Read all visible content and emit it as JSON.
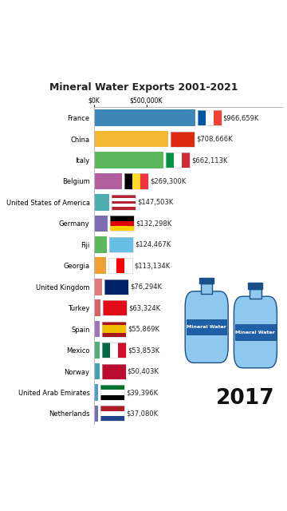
{
  "chart_data": {
    "type": "bar",
    "orientation": "horizontal",
    "title": "Mineral Water Exports 2001-2021",
    "annotations": [
      "2017",
      "Mineral Water",
      "Mineral Water"
    ],
    "categories": [
      "France",
      "China",
      "Italy",
      "Belgium",
      "United States of America",
      "Germany",
      "Fiji",
      "Georgia",
      "United Kingdom",
      "Turkey",
      "Spain",
      "Mexico",
      "Norway",
      "United Arab Emirates",
      "Netherlands"
    ],
    "values": [
      966659,
      708666,
      662113,
      269300,
      147503,
      132298,
      124467,
      113134,
      76294,
      63324,
      55869,
      53853,
      50403,
      39396,
      37080
    ],
    "value_labels": [
      "$966,659K",
      "$708,666K",
      "$662,113K",
      "$269,300K",
      "$147,503K",
      "$132,298K",
      "$124,467K",
      "$113,134K",
      "$76,294K",
      "$63,324K",
      "$55,869K",
      "$53,853K",
      "$50,403K",
      "$39,396K",
      "$37,080K"
    ],
    "colors": [
      "#3d86b8",
      "#f4b731",
      "#5cb85c",
      "#b15e9f",
      "#4eafb2",
      "#7b6cb4",
      "#5cb85c",
      "#f0a033",
      "#e07b7b",
      "#d96262",
      "#a472c2",
      "#4bb07a",
      "#3fa6b1",
      "#4a9fd1",
      "#7171b1"
    ],
    "xlim": [
      0,
      1800000
    ],
    "xticks": [
      {
        "value": 0,
        "label": "$0K"
      },
      {
        "value": 500000,
        "label": "$500,000K"
      }
    ],
    "data_labels": true,
    "grid": false
  }
}
